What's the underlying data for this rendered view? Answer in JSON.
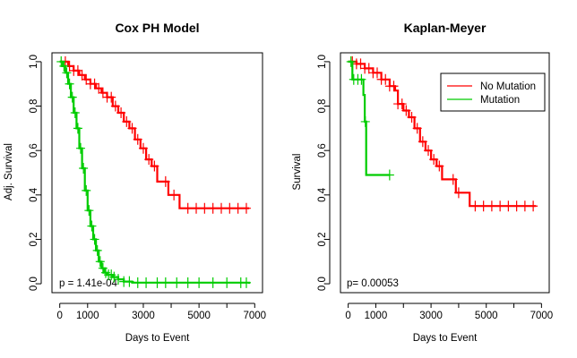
{
  "colors": {
    "no_mutation": "#ff0000",
    "mutation": "#00cc00",
    "axis": "#000000",
    "background": "#ffffff"
  },
  "chart_data": [
    {
      "type": "line",
      "title": "Cox PH Model",
      "xlabel": "Days to Event",
      "ylabel": "Adj. Survival",
      "xlim": [
        0,
        7000
      ],
      "ylim": [
        0,
        1.0
      ],
      "x_ticks": [
        0,
        1000,
        2000,
        3000,
        4000,
        5000,
        6000,
        7000
      ],
      "x_tick_labels": [
        "0",
        "1000",
        "",
        "3000",
        "",
        "5000",
        "",
        "7000"
      ],
      "y_ticks": [
        0,
        0.2,
        0.4,
        0.6,
        0.8,
        1.0
      ],
      "y_tick_labels": [
        "0.0",
        "0.2",
        "0.4",
        "0.6",
        "0.8",
        "1.0"
      ],
      "annotation": "p = 1.41e-04",
      "series": [
        {
          "color": "#ff0000",
          "steps": [
            [
              0,
              1.0
            ],
            [
              300,
              0.98
            ],
            [
              500,
              0.96
            ],
            [
              700,
              0.94
            ],
            [
              900,
              0.92
            ],
            [
              1100,
              0.9
            ],
            [
              1300,
              0.88
            ],
            [
              1500,
              0.86
            ],
            [
              1700,
              0.84
            ],
            [
              1900,
              0.8
            ],
            [
              2100,
              0.77
            ],
            [
              2300,
              0.73
            ],
            [
              2500,
              0.7
            ],
            [
              2700,
              0.65
            ],
            [
              2900,
              0.61
            ],
            [
              3100,
              0.56
            ],
            [
              3300,
              0.53
            ],
            [
              3500,
              0.46
            ],
            [
              3900,
              0.4
            ],
            [
              4300,
              0.34
            ],
            [
              6800,
              0.34
            ]
          ],
          "censored": [
            200,
            350,
            500,
            650,
            800,
            950,
            1100,
            1250,
            1400,
            1550,
            1700,
            1850,
            2000,
            2200,
            2400,
            2600,
            2800,
            3000,
            3200,
            3400,
            3800,
            4100,
            4600,
            4900,
            5200,
            5500,
            5800,
            6100,
            6400,
            6700
          ]
        },
        {
          "color": "#00cc00",
          "steps": [
            [
              0,
              1.0
            ],
            [
              100,
              0.98
            ],
            [
              200,
              0.95
            ],
            [
              300,
              0.9
            ],
            [
              400,
              0.84
            ],
            [
              500,
              0.77
            ],
            [
              600,
              0.7
            ],
            [
              700,
              0.61
            ],
            [
              800,
              0.52
            ],
            [
              900,
              0.42
            ],
            [
              1000,
              0.33
            ],
            [
              1100,
              0.26
            ],
            [
              1200,
              0.2
            ],
            [
              1300,
              0.15
            ],
            [
              1400,
              0.1
            ],
            [
              1500,
              0.07
            ],
            [
              1600,
              0.05
            ],
            [
              1700,
              0.04
            ],
            [
              1900,
              0.03
            ],
            [
              2100,
              0.02
            ],
            [
              2300,
              0.01
            ],
            [
              2600,
              0.005
            ],
            [
              6800,
              0.0
            ]
          ],
          "censored": [
            50,
            150,
            250,
            350,
            450,
            550,
            650,
            750,
            850,
            950,
            1050,
            1150,
            1250,
            1350,
            1450,
            1550,
            1650,
            1750,
            1850,
            1950,
            2100,
            2300,
            2500,
            2800,
            3100,
            3500,
            3800,
            4200,
            4600,
            5000,
            5500,
            6000,
            6500,
            6700
          ]
        }
      ]
    },
    {
      "type": "line",
      "title": "Kaplan-Meyer",
      "xlabel": "Days to Event",
      "ylabel": "Survival",
      "xlim": [
        0,
        7000
      ],
      "ylim": [
        0,
        1.0
      ],
      "x_ticks": [
        0,
        1000,
        2000,
        3000,
        4000,
        5000,
        6000,
        7000
      ],
      "x_tick_labels": [
        "0",
        "1000",
        "",
        "3000",
        "",
        "5000",
        "",
        "7000"
      ],
      "y_ticks": [
        0,
        0.2,
        0.4,
        0.6,
        0.8,
        1.0
      ],
      "y_tick_labels": [
        "0.0",
        "0.2",
        "0.4",
        "0.6",
        "0.8",
        "1.0"
      ],
      "annotation": "p= 0.00053",
      "legend_position": "top-right",
      "legend": [
        {
          "label": "No Mutation",
          "color": "#ff0000"
        },
        {
          "label": "Mutation",
          "color": "#00cc00"
        }
      ],
      "series": [
        {
          "color": "#ff0000",
          "steps": [
            [
              0,
              1.0
            ],
            [
              300,
              0.99
            ],
            [
              600,
              0.97
            ],
            [
              900,
              0.95
            ],
            [
              1200,
              0.92
            ],
            [
              1500,
              0.89
            ],
            [
              1700,
              0.87
            ],
            [
              1800,
              0.81
            ],
            [
              2000,
              0.78
            ],
            [
              2200,
              0.75
            ],
            [
              2400,
              0.7
            ],
            [
              2600,
              0.64
            ],
            [
              2800,
              0.6
            ],
            [
              3000,
              0.56
            ],
            [
              3200,
              0.53
            ],
            [
              3400,
              0.47
            ],
            [
              3900,
              0.41
            ],
            [
              4400,
              0.35
            ],
            [
              6800,
              0.35
            ]
          ],
          "censored": [
            150,
            300,
            450,
            600,
            750,
            900,
            1050,
            1200,
            1350,
            1500,
            1650,
            1800,
            1950,
            2100,
            2300,
            2500,
            2700,
            2900,
            3100,
            3300,
            3800,
            4000,
            4600,
            4900,
            5200,
            5500,
            5800,
            6100,
            6400,
            6700
          ]
        },
        {
          "color": "#00cc00",
          "steps": [
            [
              0,
              1.0
            ],
            [
              150,
              0.92
            ],
            [
              500,
              0.92
            ],
            [
              550,
              0.85
            ],
            [
              600,
              0.73
            ],
            [
              650,
              0.49
            ],
            [
              1500,
              0.49
            ]
          ],
          "censored": [
            100,
            200,
            350,
            480,
            620,
            1500
          ]
        }
      ]
    }
  ]
}
